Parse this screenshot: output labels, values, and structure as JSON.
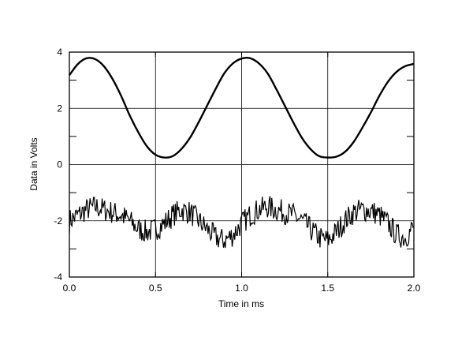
{
  "chart_data": {
    "type": "line",
    "title": "",
    "xlabel": "Time in ms",
    "ylabel": "Data in Volts",
    "xlim": [
      0.0,
      2.0
    ],
    "ylim": [
      -4,
      4
    ],
    "xticks": [
      0.0,
      0.5,
      1.0,
      1.5,
      2.0
    ],
    "xtick_labels": [
      "0.0",
      "0.5",
      "1.0",
      "1.5",
      "2.0"
    ],
    "yticks": [
      4,
      2,
      0,
      -2,
      -4
    ],
    "ytick_labels": [
      "4",
      "2",
      "0",
      "-2",
      "-4"
    ],
    "grid": true,
    "legend": "none",
    "line_color": "#000000",
    "series": [
      {
        "x": [
          0.0,
          0.05,
          0.1,
          0.15,
          0.2,
          0.25,
          0.3,
          0.35,
          0.4,
          0.45,
          0.5,
          0.55,
          0.6,
          0.65,
          0.7,
          0.75,
          0.8,
          0.85,
          0.9,
          0.95,
          1.0,
          1.05,
          1.1,
          1.15,
          1.2,
          1.25,
          1.3,
          1.35,
          1.4,
          1.45,
          1.5,
          1.55,
          1.6,
          1.65,
          1.7,
          1.75,
          1.8,
          1.85,
          1.9,
          1.95,
          2.0
        ],
        "values": [
          3.18,
          3.58,
          3.78,
          3.75,
          3.5,
          3.05,
          2.45,
          1.75,
          1.15,
          0.65,
          0.35,
          0.25,
          0.3,
          0.55,
          0.95,
          1.5,
          2.1,
          2.7,
          3.25,
          3.6,
          3.77,
          3.78,
          3.6,
          3.25,
          2.7,
          2.1,
          1.5,
          0.95,
          0.55,
          0.3,
          0.25,
          0.28,
          0.45,
          0.8,
          1.3,
          1.85,
          2.45,
          2.95,
          3.3,
          3.5,
          3.58
        ]
      },
      {
        "x": [
          0.0,
          0.05,
          0.1,
          0.15,
          0.2,
          0.25,
          0.3,
          0.35,
          0.4,
          0.45,
          0.5,
          0.55,
          0.6,
          0.65,
          0.7,
          0.75,
          0.8,
          0.85,
          0.9,
          0.95,
          1.0,
          1.05,
          1.1,
          1.15,
          1.2,
          1.25,
          1.3,
          1.35,
          1.4,
          1.45,
          1.5,
          1.55,
          1.6,
          1.65,
          1.7,
          1.75,
          1.8,
          1.85,
          1.9,
          1.95,
          2.0
        ],
        "values": [
          -2.0,
          -1.8,
          -1.6,
          -1.5,
          -1.6,
          -1.7,
          -1.8,
          -2.0,
          -2.3,
          -2.4,
          -2.3,
          -2.1,
          -1.8,
          -1.6,
          -1.7,
          -2.0,
          -2.3,
          -2.6,
          -2.7,
          -2.5,
          -2.1,
          -1.8,
          -1.6,
          -1.5,
          -1.6,
          -1.7,
          -1.8,
          -2.0,
          -2.3,
          -2.6,
          -2.7,
          -2.4,
          -2.0,
          -1.7,
          -1.6,
          -1.65,
          -1.8,
          -2.1,
          -2.5,
          -2.6,
          -2.2
        ]
      }
    ]
  }
}
